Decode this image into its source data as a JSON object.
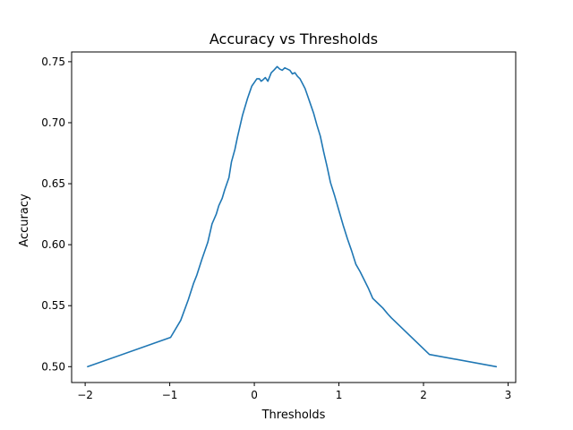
{
  "chart_data": {
    "type": "line",
    "title": "Accuracy vs Thresholds",
    "xlabel": "Thresholds",
    "ylabel": "Accuracy",
    "xlim": [
      -2.16,
      3.09
    ],
    "ylim": [
      0.487,
      0.758
    ],
    "xticks": [
      -2,
      -1,
      0,
      1,
      2,
      3
    ],
    "xtick_labels": [
      "−2",
      "−1",
      "0",
      "1",
      "2",
      "3"
    ],
    "yticks": [
      0.5,
      0.55,
      0.6,
      0.65,
      0.7,
      0.75
    ],
    "ytick_labels": [
      "0.50",
      "0.55",
      "0.60",
      "0.65",
      "0.70",
      "0.75"
    ],
    "grid": false,
    "line_color": "#1f77b4",
    "series": [
      {
        "x": [
          -1.97,
          -0.99,
          -0.87,
          -0.78,
          -0.72,
          -0.68,
          -0.62,
          -0.55,
          -0.5,
          -0.45,
          -0.42,
          -0.38,
          -0.35,
          -0.3,
          -0.27,
          -0.23,
          -0.2,
          -0.17,
          -0.14,
          -0.11,
          -0.08,
          -0.05,
          -0.03,
          0.0,
          0.03,
          0.06,
          0.08,
          0.1,
          0.13,
          0.16,
          0.2,
          0.23,
          0.27,
          0.3,
          0.33,
          0.36,
          0.39,
          0.42,
          0.45,
          0.48,
          0.51,
          0.54,
          0.57,
          0.6,
          0.63,
          0.66,
          0.7,
          0.74,
          0.78,
          0.82,
          0.86,
          0.9,
          0.95,
          1.0,
          1.05,
          1.1,
          1.15,
          1.2,
          1.25,
          1.3,
          1.35,
          1.4,
          1.46,
          1.52,
          1.58,
          1.62,
          2.07,
          2.86
        ],
        "y": [
          0.5,
          0.524,
          0.538,
          0.555,
          0.568,
          0.575,
          0.588,
          0.602,
          0.617,
          0.625,
          0.632,
          0.638,
          0.645,
          0.655,
          0.668,
          0.678,
          0.688,
          0.697,
          0.706,
          0.713,
          0.72,
          0.726,
          0.73,
          0.733,
          0.736,
          0.736,
          0.734,
          0.735,
          0.737,
          0.734,
          0.741,
          0.743,
          0.746,
          0.744,
          0.743,
          0.745,
          0.744,
          0.743,
          0.74,
          0.741,
          0.738,
          0.736,
          0.732,
          0.728,
          0.722,
          0.716,
          0.708,
          0.698,
          0.689,
          0.676,
          0.664,
          0.651,
          0.64,
          0.628,
          0.616,
          0.605,
          0.595,
          0.584,
          0.578,
          0.571,
          0.564,
          0.556,
          0.552,
          0.548,
          0.543,
          0.54,
          0.51,
          0.5
        ]
      }
    ]
  }
}
